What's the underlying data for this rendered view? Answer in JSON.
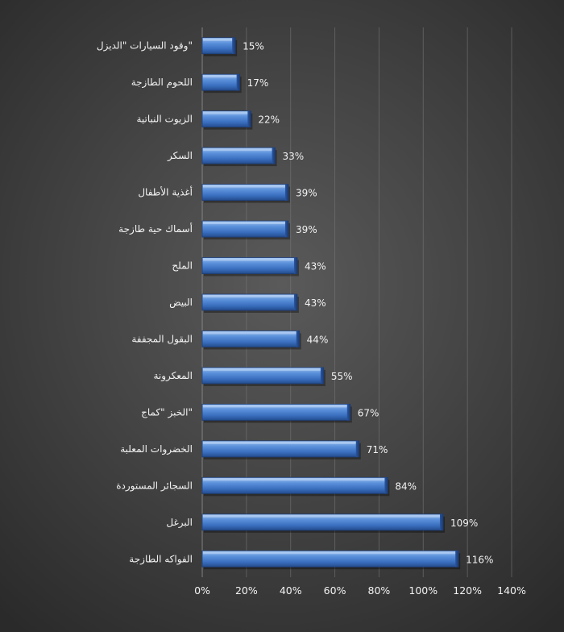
{
  "chart_data": {
    "type": "bar",
    "orientation": "horizontal",
    "categories": [
      "وقود السيارات \"الديزل\"",
      "اللحوم الطازجة",
      "الزيوت النباتية",
      "السكر",
      "أغذية الأطفال",
      "أسماك حية طازجة",
      "الملح",
      "البيض",
      "البقول المجففة",
      "المعكرونة",
      "الخبز \"كماج\"",
      "الخضروات المعلبة",
      "السجائر المستوردة",
      "البرغل",
      "الفواكه الطازجة"
    ],
    "values": [
      15,
      17,
      22,
      33,
      39,
      39,
      43,
      43,
      44,
      55,
      67,
      71,
      84,
      109,
      116
    ],
    "data_labels": [
      "15%",
      "17%",
      "22%",
      "33%",
      "39%",
      "39%",
      "43%",
      "43%",
      "44%",
      "55%",
      "67%",
      "71%",
      "84%",
      "109%",
      "116%"
    ],
    "x_ticks": [
      "0%",
      "20%",
      "40%",
      "60%",
      "80%",
      "100%",
      "120%",
      "140%"
    ],
    "xlim": [
      0,
      140
    ],
    "grid": true,
    "legend": "none",
    "title": "",
    "xlabel": "",
    "ylabel": "",
    "colors": {
      "bar_light": "#8fb6ea",
      "bar_mid": "#4f86d3",
      "bar_dark": "#2c5aa3",
      "bar_edge": "#1e3f78",
      "gridline": "#7a7a7a",
      "text": "#f2f2f2"
    }
  }
}
